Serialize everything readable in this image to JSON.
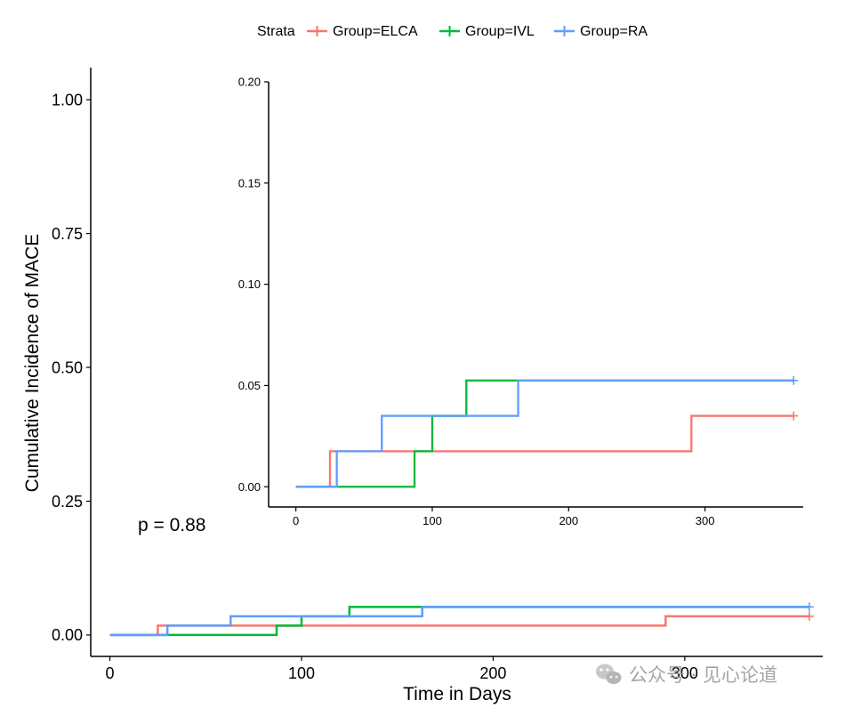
{
  "chart_data": {
    "type": "line",
    "step": true,
    "ylabel": "Cumulative Incidence of MACE",
    "xlabel": "Time in Days",
    "pvalue": "p = 0.88",
    "legend": {
      "title": "Strata",
      "placement": "top",
      "entries": [
        "Group=ELCA",
        "Group=IVL",
        "Group=RA"
      ]
    },
    "main": {
      "xlim": [
        -10,
        372
      ],
      "ylim": [
        -0.04,
        1.06
      ],
      "x_ticks": [
        0,
        100,
        200,
        300
      ],
      "y_ticks": [
        0.0,
        0.25,
        0.5,
        0.75,
        1.0
      ],
      "y_tick_labels": [
        "0.00",
        "0.25",
        "0.50",
        "0.75",
        "1.00"
      ],
      "x_tick_labels": [
        "0",
        "100",
        "200",
        "300"
      ]
    },
    "inset": {
      "xlim": [
        -20,
        372
      ],
      "ylim": [
        -0.01,
        0.2
      ],
      "x_ticks": [
        0,
        100,
        200,
        300
      ],
      "y_ticks": [
        0.0,
        0.05,
        0.1,
        0.15,
        0.2
      ],
      "y_tick_labels": [
        "0.00",
        "0.05",
        "0.10",
        "0.15",
        "0.20"
      ],
      "x_tick_labels": [
        "0",
        "100",
        "200",
        "300"
      ]
    },
    "series": [
      {
        "name": "Group=ELCA",
        "color": "#F8766D",
        "steps": [
          [
            0,
            0
          ],
          [
            25,
            0.0175
          ],
          [
            290,
            0.035
          ],
          [
            365,
            0.035
          ]
        ],
        "censor": [
          365,
          0.035
        ]
      },
      {
        "name": "Group=IVL",
        "color": "#00BA38",
        "steps": [
          [
            0,
            0
          ],
          [
            30,
            0
          ],
          [
            87,
            0.0175
          ],
          [
            100,
            0.035
          ],
          [
            125,
            0.0525
          ],
          [
            365,
            0.0525
          ]
        ],
        "censor": null
      },
      {
        "name": "Group=RA",
        "color": "#619CFF",
        "steps": [
          [
            0,
            0
          ],
          [
            30,
            0.0175
          ],
          [
            63,
            0.035
          ],
          [
            163,
            0.0525
          ],
          [
            365,
            0.0525
          ]
        ],
        "censor": [
          365,
          0.0525
        ]
      }
    ]
  },
  "watermark": "公众号 · 见心论道"
}
